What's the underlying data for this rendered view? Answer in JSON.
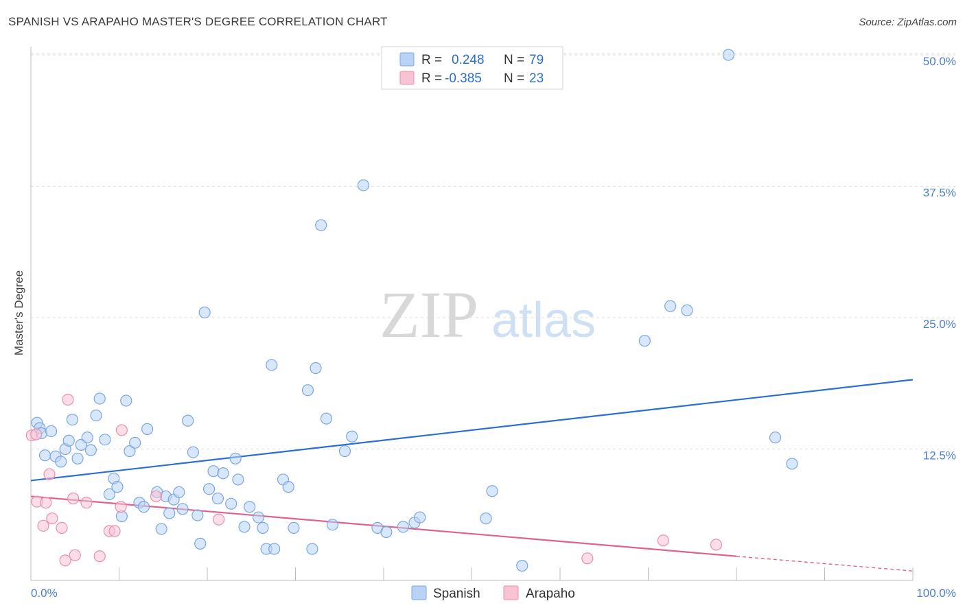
{
  "title": "SPANISH VS ARAPAHO MASTER'S DEGREE CORRELATION CHART",
  "source": "Source: ZipAtlas.com",
  "watermark": {
    "zip": "ZIP",
    "atlas": "atlas"
  },
  "legend": {
    "rows": [
      {
        "r_label": "R =",
        "r_value": "0.248",
        "n_label": "N =",
        "n_value": "79"
      },
      {
        "r_label": "R =",
        "r_value": "-0.385",
        "n_label": "N =",
        "n_value": "23"
      }
    ]
  },
  "bottom_legend": {
    "spanish": "Spanish",
    "arapaho": "Arapaho"
  },
  "colors": {
    "spanish_fill": "#b9d3f5",
    "spanish_stroke": "#7aa6e0",
    "spanish_line": "#2a6fcf",
    "arapaho_fill": "#f8c3d3",
    "arapaho_stroke": "#ea8fac",
    "arapaho_line": "#e0608e",
    "grid": "#dcdcdc",
    "tick_text": "#4a7fd0"
  },
  "chart_data": {
    "type": "scatter",
    "title": "SPANISH VS ARAPAHO MASTER'S DEGREE CORRELATION CHART",
    "xlabel": "",
    "ylabel": "Master's Degree",
    "xlim": [
      0,
      100
    ],
    "ylim": [
      0,
      50
    ],
    "x_tick_labels": [
      "0.0%",
      "100.0%"
    ],
    "y_ticks": [
      12.5,
      25.0,
      37.5,
      50.0
    ],
    "y_tick_labels": [
      "12.5%",
      "25.0%",
      "37.5%",
      "50.0%"
    ],
    "series": [
      {
        "name": "Spanish",
        "r": 0.248,
        "n": 79,
        "trend": {
          "x": [
            0,
            100
          ],
          "y": [
            9.5,
            19.1
          ]
        },
        "points": [
          [
            0.7,
            15.0
          ],
          [
            1.0,
            14.5
          ],
          [
            1.2,
            14.0
          ],
          [
            1.6,
            11.9
          ],
          [
            2.3,
            14.2
          ],
          [
            2.8,
            11.8
          ],
          [
            3.4,
            11.3
          ],
          [
            3.9,
            12.5
          ],
          [
            4.3,
            13.3
          ],
          [
            4.7,
            15.3
          ],
          [
            5.3,
            11.6
          ],
          [
            5.7,
            12.9
          ],
          [
            6.4,
            13.6
          ],
          [
            6.8,
            12.4
          ],
          [
            7.4,
            15.7
          ],
          [
            7.8,
            17.3
          ],
          [
            8.4,
            13.4
          ],
          [
            8.9,
            8.2
          ],
          [
            9.4,
            9.7
          ],
          [
            9.8,
            8.9
          ],
          [
            10.3,
            6.1
          ],
          [
            10.8,
            17.1
          ],
          [
            11.2,
            12.3
          ],
          [
            11.8,
            13.1
          ],
          [
            12.3,
            7.4
          ],
          [
            12.8,
            7.0
          ],
          [
            13.2,
            14.4
          ],
          [
            14.3,
            8.4
          ],
          [
            14.8,
            4.9
          ],
          [
            15.3,
            8.0
          ],
          [
            15.7,
            6.4
          ],
          [
            16.2,
            7.7
          ],
          [
            16.8,
            8.4
          ],
          [
            17.2,
            6.8
          ],
          [
            17.8,
            15.2
          ],
          [
            18.4,
            12.2
          ],
          [
            18.9,
            6.2
          ],
          [
            19.2,
            3.5
          ],
          [
            19.7,
            25.5
          ],
          [
            20.2,
            8.7
          ],
          [
            20.7,
            10.4
          ],
          [
            21.2,
            7.8
          ],
          [
            21.8,
            10.2
          ],
          [
            22.7,
            7.3
          ],
          [
            23.2,
            11.6
          ],
          [
            23.5,
            9.6
          ],
          [
            24.2,
            5.1
          ],
          [
            24.8,
            7.0
          ],
          [
            25.8,
            6.0
          ],
          [
            26.3,
            5.0
          ],
          [
            26.7,
            3.0
          ],
          [
            27.3,
            20.5
          ],
          [
            27.6,
            3.0
          ],
          [
            28.6,
            9.6
          ],
          [
            29.2,
            8.9
          ],
          [
            29.8,
            5.0
          ],
          [
            31.4,
            18.1
          ],
          [
            31.9,
            3.0
          ],
          [
            32.3,
            20.2
          ],
          [
            32.9,
            33.8
          ],
          [
            33.5,
            15.4
          ],
          [
            34.2,
            5.3
          ],
          [
            35.6,
            12.3
          ],
          [
            36.4,
            13.7
          ],
          [
            37.7,
            37.6
          ],
          [
            39.3,
            5.0
          ],
          [
            40.3,
            4.6
          ],
          [
            42.2,
            5.1
          ],
          [
            43.5,
            5.5
          ],
          [
            44.1,
            6.0
          ],
          [
            51.6,
            5.9
          ],
          [
            52.3,
            8.5
          ],
          [
            55.7,
            1.4
          ],
          [
            69.6,
            22.8
          ],
          [
            72.5,
            26.1
          ],
          [
            74.4,
            25.7
          ],
          [
            79.1,
            50.0
          ],
          [
            84.4,
            13.6
          ],
          [
            86.3,
            11.1
          ]
        ]
      },
      {
        "name": "Arapaho",
        "r": -0.385,
        "n": 23,
        "trend": {
          "x": [
            0,
            80
          ],
          "y": [
            8.0,
            2.3
          ],
          "dashed_to": {
            "x": 100,
            "y": 0.9
          }
        },
        "points": [
          [
            0.1,
            13.8
          ],
          [
            0.6,
            13.9
          ],
          [
            0.7,
            7.5
          ],
          [
            1.4,
            5.2
          ],
          [
            1.7,
            7.4
          ],
          [
            2.1,
            10.1
          ],
          [
            2.4,
            5.9
          ],
          [
            3.5,
            5.0
          ],
          [
            3.9,
            1.9
          ],
          [
            4.2,
            17.2
          ],
          [
            4.8,
            7.8
          ],
          [
            5.0,
            2.4
          ],
          [
            6.3,
            7.4
          ],
          [
            7.8,
            2.3
          ],
          [
            8.9,
            4.7
          ],
          [
            9.5,
            4.7
          ],
          [
            10.2,
            7.0
          ],
          [
            10.3,
            14.3
          ],
          [
            14.2,
            8.0
          ],
          [
            21.3,
            5.8
          ],
          [
            63.1,
            2.1
          ],
          [
            71.7,
            3.8
          ],
          [
            77.7,
            3.4
          ]
        ]
      }
    ]
  }
}
